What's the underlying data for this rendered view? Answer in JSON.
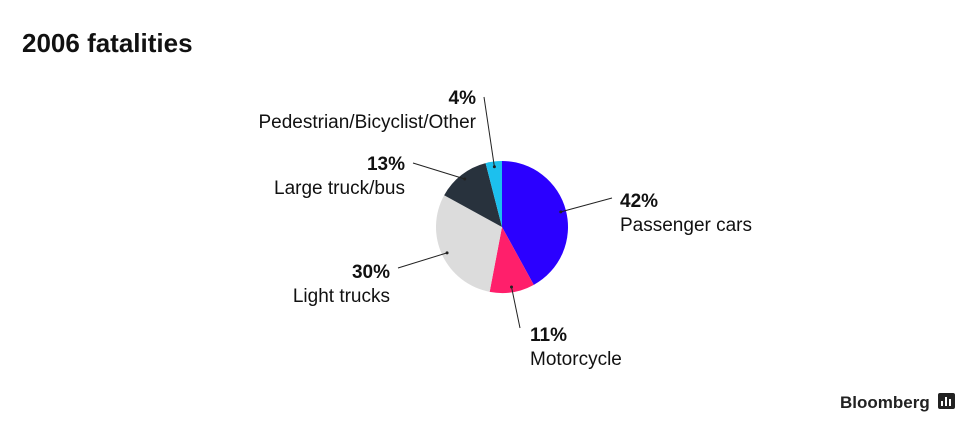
{
  "chart_data": {
    "type": "pie",
    "title": "2006 fatalities",
    "categories": [
      "Passenger cars",
      "Motorcycle",
      "Light trucks",
      "Large truck/bus",
      "Pedestrian/Bicyclist/Other"
    ],
    "values": [
      42,
      11,
      30,
      13,
      4
    ],
    "value_labels": [
      "42%",
      "11%",
      "30%",
      "13%",
      "4%"
    ],
    "colors": [
      "#2b00ff",
      "#ff1f6b",
      "#dcdcdc",
      "#28323d",
      "#1cc0ee"
    ],
    "source": "Bloomberg"
  }
}
